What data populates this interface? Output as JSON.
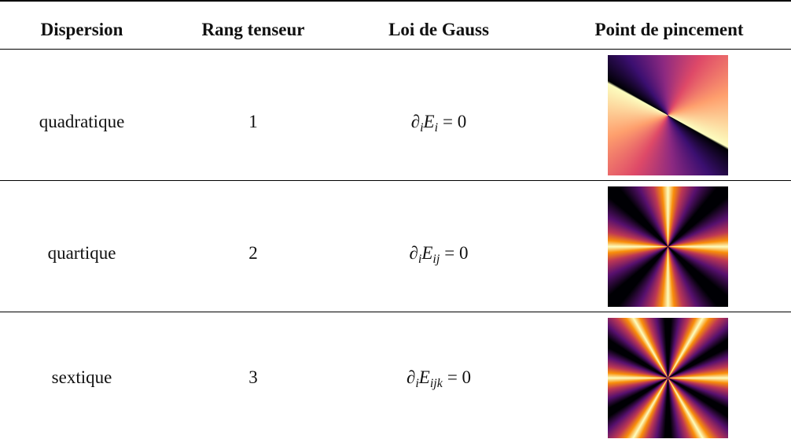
{
  "table": {
    "header": [
      "Dispersion",
      "Rang tenseur",
      "Loi de Gauss",
      "Point de pincement"
    ],
    "rows": [
      {
        "dispersion": "quadratique",
        "rank": 1,
        "gauss": {
          "symbol": "∂",
          "symbol_index": "i",
          "field": "E",
          "field_index": "i",
          "rhs": "= 0"
        }
      },
      {
        "dispersion": "quartique",
        "rank": 2,
        "gauss": {
          "symbol": "∂",
          "symbol_index": "i",
          "field": "E",
          "field_index": "ij",
          "rhs": "= 0"
        }
      },
      {
        "dispersion": "sextique",
        "rank": 3,
        "gauss": {
          "symbol": "∂",
          "symbol_index": "i",
          "field": "E",
          "field_index": "ijk",
          "rhs": "= 0"
        }
      }
    ]
  }
}
